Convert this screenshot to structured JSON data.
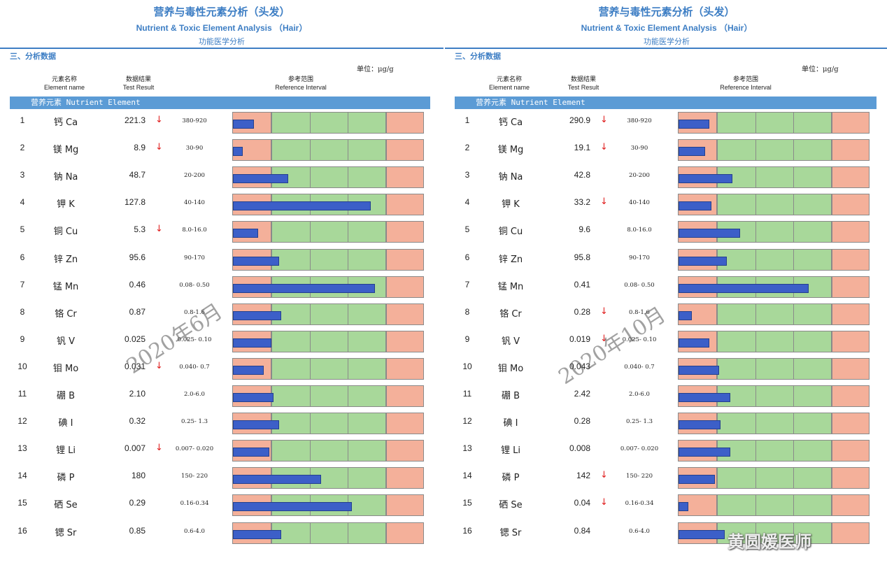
{
  "report": {
    "title_cn": "营养与毒性元素分析（头发）",
    "title_en": "Nutrient & Toxic Element Analysis （Hair）",
    "subtitle": "功能医学分析",
    "section": "三、分析数据",
    "unit": "单位：μg/g",
    "col_element_cn": "元素名称",
    "col_element_en": "Element name",
    "col_result_cn": "数据结果",
    "col_result_en": "Test Result",
    "col_ref_cn": "参考范围",
    "col_ref_en": "Reference Interval",
    "group_label": "营养元素   Nutrient Element"
  },
  "colors": {
    "accent": "#3d7ec4",
    "low_high": "#f4b09a",
    "normal": "#a8d89a",
    "bar": "#3c5fc8",
    "arrow": "#e02020"
  },
  "panels": [
    {
      "watermark": "2020年6月",
      "rows": [
        {
          "num": "1",
          "element": "钙 Ca",
          "value": "221.3",
          "arrow": "↓",
          "ref": "380-920",
          "level": 0.11
        },
        {
          "num": "2",
          "element": "镁 Mg",
          "value": "8.9",
          "arrow": "↓",
          "ref": "30-90",
          "level": 0.05
        },
        {
          "num": "3",
          "element": "钠 Na",
          "value": "48.7",
          "arrow": "",
          "ref": "20-200",
          "level": 0.29
        },
        {
          "num": "4",
          "element": "钾 K",
          "value": "127.8",
          "arrow": "",
          "ref": "40-140",
          "level": 0.72
        },
        {
          "num": "5",
          "element": "铜 Cu",
          "value": "5.3",
          "arrow": "↓",
          "ref": "8.0-16.0",
          "level": 0.13
        },
        {
          "num": "6",
          "element": "锌 Zn",
          "value": "95.6",
          "arrow": "",
          "ref": "90-170",
          "level": 0.24
        },
        {
          "num": "7",
          "element": "锰 Mn",
          "value": "0.46",
          "arrow": "",
          "ref": "0.08- 0.50",
          "level": 0.74
        },
        {
          "num": "8",
          "element": "铬 Cr",
          "value": "0.87",
          "arrow": "",
          "ref": "0.8-1.6",
          "level": 0.25
        },
        {
          "num": "9",
          "element": "钒 V",
          "value": "0.025",
          "arrow": "",
          "ref": "0.025- 0.10",
          "level": 0.2
        },
        {
          "num": "10",
          "element": "钼 Mo",
          "value": "0.031",
          "arrow": "↓",
          "ref": "0.040- 0.7",
          "level": 0.16
        },
        {
          "num": "11",
          "element": "硼 B",
          "value": "2.10",
          "arrow": "",
          "ref": "2.0-6.0",
          "level": 0.21
        },
        {
          "num": "12",
          "element": "碘 I",
          "value": "0.32",
          "arrow": "",
          "ref": "0.25- 1.3",
          "level": 0.24
        },
        {
          "num": "13",
          "element": "锂 Li",
          "value": "0.007",
          "arrow": "↓",
          "ref": "0.007- 0.020",
          "level": 0.19
        },
        {
          "num": "14",
          "element": "磷 P",
          "value": "180",
          "arrow": "",
          "ref": "150- 220",
          "level": 0.46
        },
        {
          "num": "15",
          "element": "硒 Se",
          "value": "0.29",
          "arrow": "",
          "ref": "0.16-0.34",
          "level": 0.62
        },
        {
          "num": "16",
          "element": "锶 Sr",
          "value": "0.85",
          "arrow": "",
          "ref": "0.6-4.0",
          "level": 0.25
        }
      ]
    },
    {
      "watermark": "2020年10月",
      "rows": [
        {
          "num": "1",
          "element": "钙 Ca",
          "value": "290.9",
          "arrow": "↓",
          "ref": "380-920",
          "level": 0.16
        },
        {
          "num": "2",
          "element": "镁 Mg",
          "value": "19.1",
          "arrow": "↓",
          "ref": "30-90",
          "level": 0.14
        },
        {
          "num": "3",
          "element": "钠 Na",
          "value": "42.8",
          "arrow": "",
          "ref": "20-200",
          "level": 0.28
        },
        {
          "num": "4",
          "element": "钾 K",
          "value": "33.2",
          "arrow": "↓",
          "ref": "40-140",
          "level": 0.17
        },
        {
          "num": "5",
          "element": "铜 Cu",
          "value": "9.6",
          "arrow": "",
          "ref": "8.0-16.0",
          "level": 0.32
        },
        {
          "num": "6",
          "element": "锌 Zn",
          "value": "95.8",
          "arrow": "",
          "ref": "90-170",
          "level": 0.25
        },
        {
          "num": "7",
          "element": "锰 Mn",
          "value": "0.41",
          "arrow": "",
          "ref": "0.08- 0.50",
          "level": 0.68
        },
        {
          "num": "8",
          "element": "铬 Cr",
          "value": "0.28",
          "arrow": "↓",
          "ref": "0.8-1.6",
          "level": 0.07
        },
        {
          "num": "9",
          "element": "钒 V",
          "value": "0.019",
          "arrow": "↓",
          "ref": "0.025- 0.10",
          "level": 0.16
        },
        {
          "num": "10",
          "element": "钼 Mo",
          "value": "0.043",
          "arrow": "",
          "ref": "0.040- 0.7",
          "level": 0.21
        },
        {
          "num": "11",
          "element": "硼 B",
          "value": "2.42",
          "arrow": "",
          "ref": "2.0-6.0",
          "level": 0.27
        },
        {
          "num": "12",
          "element": "碘 I",
          "value": "0.28",
          "arrow": "",
          "ref": "0.25- 1.3",
          "level": 0.22
        },
        {
          "num": "13",
          "element": "锂 Li",
          "value": "0.008",
          "arrow": "",
          "ref": "0.007- 0.020",
          "level": 0.27
        },
        {
          "num": "14",
          "element": "磷 P",
          "value": "142",
          "arrow": "↓",
          "ref": "150- 220",
          "level": 0.19
        },
        {
          "num": "15",
          "element": "硒 Se",
          "value": "0.04",
          "arrow": "↓",
          "ref": "0.16-0.34",
          "level": 0.05
        },
        {
          "num": "16",
          "element": "锶 Sr",
          "value": "0.84",
          "arrow": "",
          "ref": "0.6-4.0",
          "level": 0.24
        }
      ]
    }
  ],
  "brand_text": "黄圆媛医师"
}
